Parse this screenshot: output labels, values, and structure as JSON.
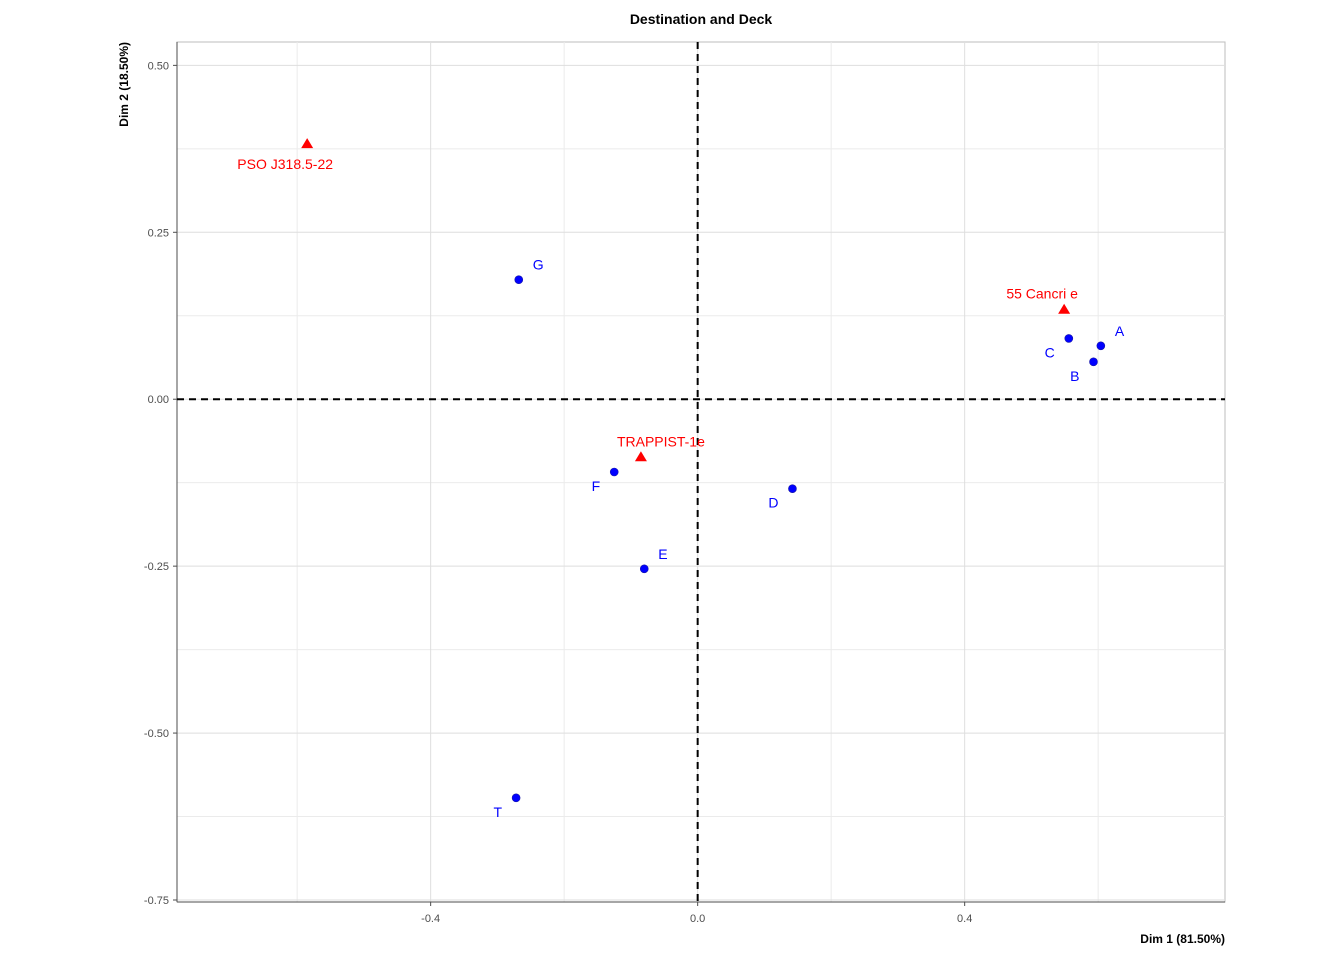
{
  "chart_data": {
    "type": "scatter",
    "title": "Destination and Deck",
    "xlabel": "Dim 1 (81.50%)",
    "ylabel": "Dim 2 (18.50%)",
    "xlim": [
      -0.78,
      0.79
    ],
    "ylim": [
      -0.753,
      0.535
    ],
    "x_ticks": [
      -0.4,
      0.0,
      0.4
    ],
    "x_tick_labels": [
      "-0.4",
      "0.0",
      "0.4"
    ],
    "y_ticks": [
      0.5,
      0.25,
      0.0,
      -0.25,
      -0.5,
      -0.75
    ],
    "y_tick_labels": [
      "0.50",
      "0.25",
      "0.00",
      "-0.25",
      "-0.50",
      "-0.75"
    ],
    "grid": true,
    "reference_lines": {
      "x": 0,
      "y": 0,
      "style": "dashed"
    },
    "series": [
      {
        "marker": "circle",
        "color": "#0000ff",
        "points": [
          {
            "label": "A",
            "x": 0.604,
            "y": 0.08,
            "label_pos": "upper-right"
          },
          {
            "label": "B",
            "x": 0.593,
            "y": 0.056,
            "label_pos": "below-left"
          },
          {
            "label": "C",
            "x": 0.556,
            "y": 0.091,
            "label_pos": "below-left"
          },
          {
            "label": "D",
            "x": 0.142,
            "y": -0.134,
            "label_pos": "below-left"
          },
          {
            "label": "E",
            "x": -0.08,
            "y": -0.254,
            "label_pos": "upper-right"
          },
          {
            "label": "F",
            "x": -0.125,
            "y": -0.109,
            "label_pos": "below-left"
          },
          {
            "label": "G",
            "x": -0.268,
            "y": 0.179,
            "label_pos": "upper-right"
          },
          {
            "label": "T",
            "x": -0.272,
            "y": -0.597,
            "label_pos": "below-left"
          }
        ]
      },
      {
        "marker": "triangle",
        "color": "#ff0000",
        "points": [
          {
            "label": "PSO J318.5-22",
            "x": -0.585,
            "y": 0.382,
            "label_pos": "below"
          },
          {
            "label": "55 Cancri e",
            "x": 0.549,
            "y": 0.134,
            "label_pos": "above-left"
          },
          {
            "label": "TRAPPIST-1e",
            "x": -0.085,
            "y": -0.087,
            "label_pos": "above"
          }
        ]
      }
    ]
  }
}
